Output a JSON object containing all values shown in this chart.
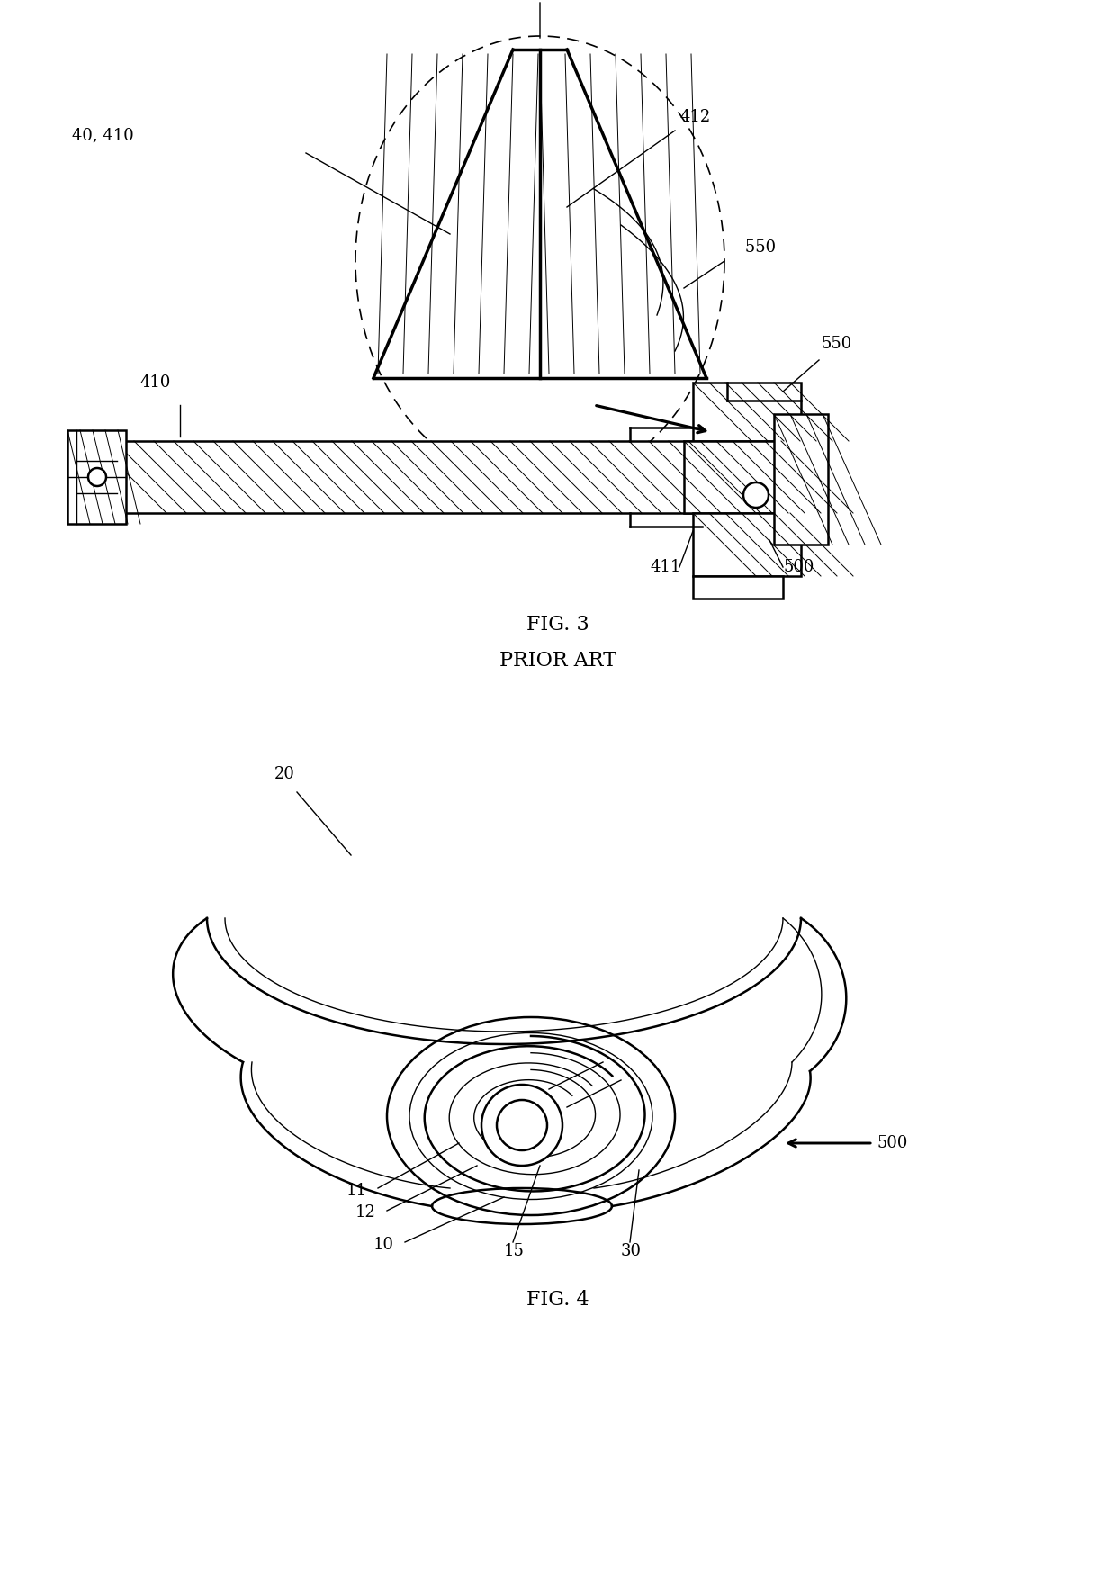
{
  "fig3_caption": "FIG. 3",
  "fig3_subcaption": "PRIOR ART",
  "fig4_caption": "FIG. 4",
  "bg": "#ffffff",
  "lc": "#000000",
  "font_size": 13,
  "caption_font_size": 16
}
